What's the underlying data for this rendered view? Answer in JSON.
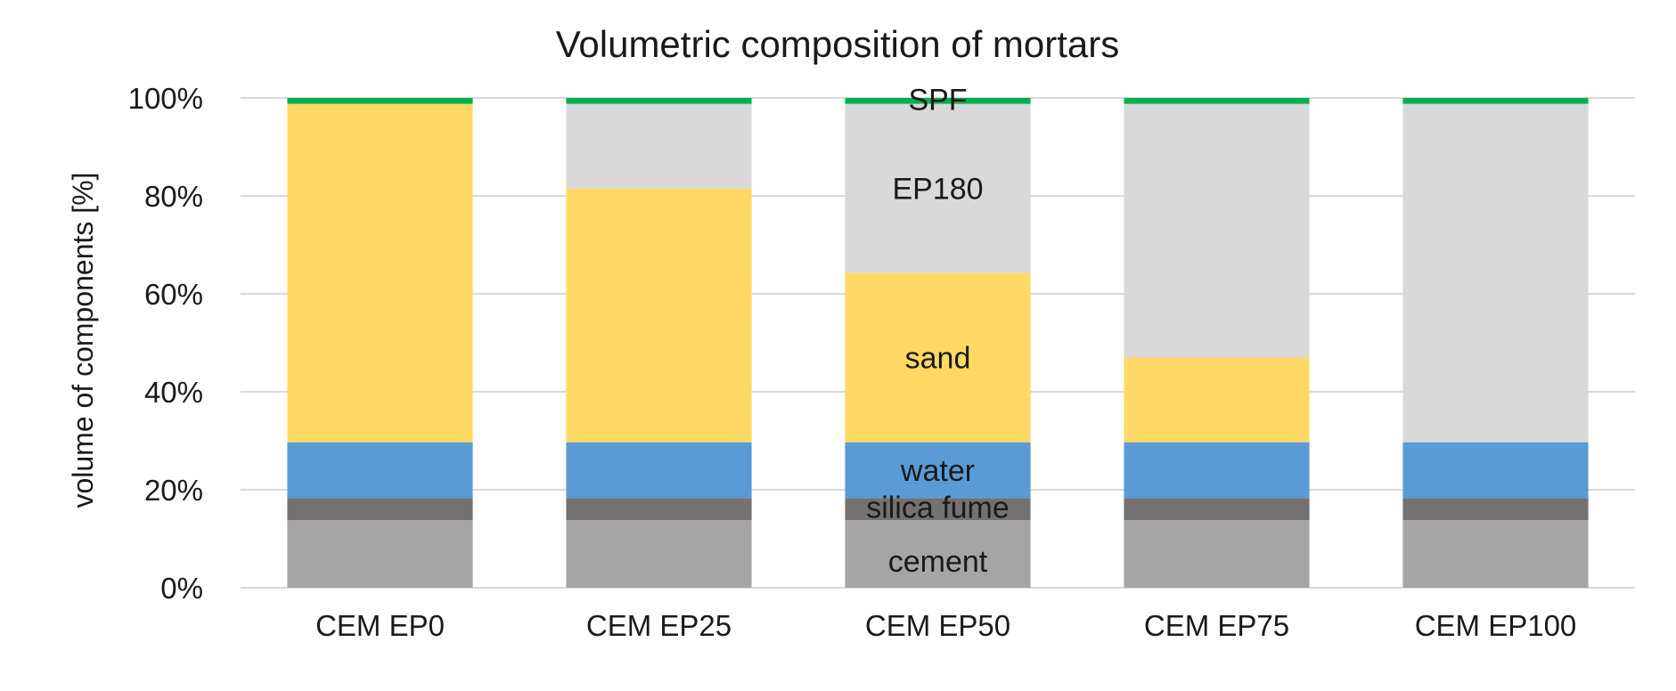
{
  "chart_data": {
    "type": "bar",
    "stacked": true,
    "title": "Volumetric composition of mortars",
    "xlabel": "",
    "ylabel": "volume of components [%]",
    "ylim": [
      0,
      100
    ],
    "yticks": [
      "0%",
      "20%",
      "40%",
      "60%",
      "80%",
      "100%"
    ],
    "ytick_values": [
      0,
      20,
      40,
      60,
      80,
      100
    ],
    "grid": true,
    "legend": "none",
    "categories": [
      "CEM EP0",
      "CEM EP25",
      "CEM EP50",
      "CEM EP75",
      "CEM EP100"
    ],
    "series": [
      {
        "name": "cement",
        "color": "#a5a5a5",
        "values": [
          13.8,
          13.8,
          13.8,
          13.8,
          13.8
        ]
      },
      {
        "name": "silica fume",
        "color": "#767171",
        "values": [
          4.5,
          4.5,
          4.5,
          4.5,
          4.5
        ]
      },
      {
        "name": "water",
        "color": "#5b9bd5",
        "values": [
          11.4,
          11.4,
          11.4,
          11.4,
          11.4
        ]
      },
      {
        "name": "sand",
        "color": "#ffd966",
        "values": [
          69.1,
          51.8,
          34.6,
          17.3,
          0
        ]
      },
      {
        "name": "EP180",
        "color": "#d9d9d9",
        "values": [
          0,
          17.3,
          34.5,
          51.8,
          69.1
        ]
      },
      {
        "name": "SPF",
        "color": "#00b050",
        "values": [
          1.2,
          1.2,
          1.2,
          1.2,
          1.2
        ]
      }
    ],
    "segment_labels_on_category": "CEM EP50"
  }
}
